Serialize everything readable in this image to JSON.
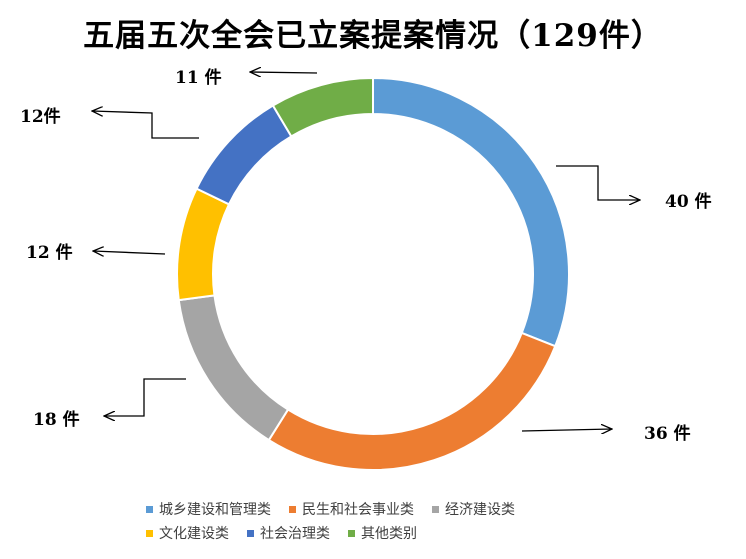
{
  "chart_data": {
    "type": "pie",
    "variant": "doughnut",
    "title": "五届五次全会已立案提案情况（129件）",
    "categories": [
      "城乡建设和管理类",
      "民生和社会事业类",
      "经济建设类",
      "文化建设类",
      "社会治理类",
      "其他类别"
    ],
    "values": [
      40,
      36,
      18,
      12,
      12,
      11
    ],
    "data_labels": [
      "40 件",
      "36 件",
      "18 件",
      "12 件",
      "12件",
      "11 件"
    ],
    "colors": [
      "#5b9bd5",
      "#ed7d31",
      "#a5a5a5",
      "#ffc000",
      "#4472c4",
      "#70ad47"
    ],
    "legend_position": "bottom"
  }
}
